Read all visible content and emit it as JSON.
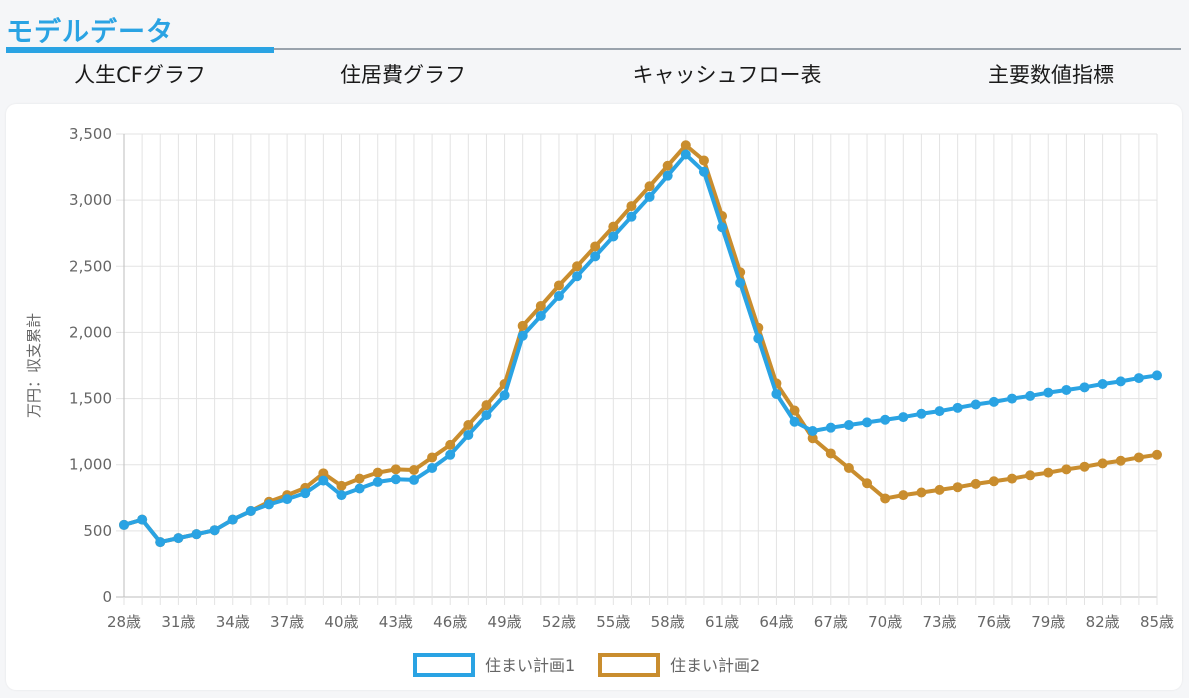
{
  "page": {
    "title": "モデルデータ"
  },
  "tabs": [
    {
      "label": "人生CFグラフ",
      "active": true
    },
    {
      "label": "住居費グラフ",
      "active": false
    },
    {
      "label": "キャッシュフロー表",
      "active": false
    },
    {
      "label": "主要数値指標",
      "active": false
    }
  ],
  "colors": {
    "accent": "#2aa3e3",
    "plan1": "#2aa3e3",
    "plan2": "#c98d2e"
  },
  "chart_data": {
    "type": "line",
    "title": "",
    "xlabel": "",
    "ylabel": "万円：収支累計",
    "ylim": [
      0,
      3500
    ],
    "yticks": [
      0,
      500,
      1000,
      1500,
      2000,
      2500,
      3000,
      3500
    ],
    "ytick_labels": [
      "0",
      "500",
      "1,000",
      "1,500",
      "2,000",
      "2,500",
      "3,000",
      "3,500"
    ],
    "x": [
      28,
      29,
      30,
      31,
      32,
      33,
      34,
      35,
      36,
      37,
      38,
      39,
      40,
      41,
      42,
      43,
      44,
      45,
      46,
      47,
      48,
      49,
      50,
      51,
      52,
      53,
      54,
      55,
      56,
      57,
      58,
      59,
      60,
      61,
      62,
      63,
      64,
      65,
      66,
      67,
      68,
      69,
      70,
      71,
      72,
      73,
      74,
      75,
      76,
      77,
      78,
      79,
      80,
      81,
      82,
      83,
      84,
      85
    ],
    "xtick_labels": [
      "28歳",
      "31歳",
      "34歳",
      "37歳",
      "40歳",
      "43歳",
      "46歳",
      "49歳",
      "52歳",
      "55歳",
      "58歳",
      "61歳",
      "64歳",
      "67歳",
      "70歳",
      "73歳",
      "76歳",
      "79歳",
      "82歳",
      "85歳"
    ],
    "grid": true,
    "legend_position": "bottom",
    "series": [
      {
        "name": "住まい計画1",
        "color": "#2aa3e3",
        "values": [
          545,
          585,
          415,
          445,
          475,
          505,
          585,
          650,
          700,
          740,
          785,
          880,
          770,
          820,
          870,
          890,
          885,
          975,
          1075,
          1225,
          1375,
          1525,
          1975,
          2125,
          2275,
          2425,
          2575,
          2725,
          2875,
          3025,
          3185,
          3345,
          3215,
          2795,
          2375,
          1955,
          1535,
          1325,
          1255,
          1280,
          1300,
          1320,
          1340,
          1360,
          1385,
          1405,
          1430,
          1455,
          1475,
          1500,
          1520,
          1545,
          1565,
          1585,
          1610,
          1630,
          1655,
          1675
        ]
      },
      {
        "name": "住まい計画2",
        "color": "#c98d2e",
        "values": [
          545,
          585,
          415,
          445,
          475,
          505,
          585,
          650,
          720,
          770,
          825,
          935,
          840,
          895,
          940,
          965,
          960,
          1055,
          1150,
          1300,
          1450,
          1610,
          2050,
          2200,
          2355,
          2500,
          2650,
          2800,
          2955,
          3105,
          3260,
          3415,
          3300,
          2880,
          2455,
          2035,
          1615,
          1410,
          1200,
          1085,
          975,
          860,
          745,
          770,
          790,
          810,
          830,
          855,
          875,
          895,
          920,
          940,
          965,
          985,
          1010,
          1030,
          1055,
          1075
        ]
      }
    ]
  }
}
